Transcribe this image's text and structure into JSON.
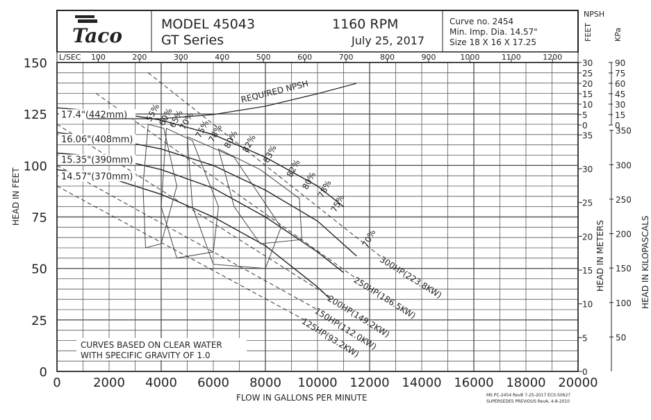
{
  "header": {
    "brand": "Taco",
    "model": "MODEL 45043",
    "series": "GT Series",
    "rpm": "1160 RPM",
    "date": "July 25, 2017",
    "curve_no": "Curve no. 2454",
    "min_imp": "Min. Imp. Dia. 14.57\"",
    "size": "Size 18 X 16 X 17.25"
  },
  "right_labels": {
    "npsh": "NPSH",
    "feet": "FEET",
    "kpa": "KPa",
    "head_meters": "HEAD IN METERS",
    "head_kpa": "HEAD IN KILOPASCALS"
  },
  "footer": {
    "note_line1": "CURVES BASED ON CLEAR WATER",
    "note_line2": "WITH SPECIFIC GRAVITY OF 1.0",
    "ms_line1": "MS PC-2454 RevB 7-25-2017 EC0-50627",
    "ms_line2": "SUPERSEDES PREVIOUS RevA, 4-8-2010"
  },
  "chart_data": {
    "type": "line",
    "xlabel": "FLOW IN GALLONS PER MINUTE",
    "ylabel": "HEAD IN FEET",
    "x2label": "L/SEC",
    "xlim": [
      0,
      20000
    ],
    "ylim": [
      0,
      150
    ],
    "x_ticks": [
      0,
      2000,
      4000,
      6000,
      8000,
      10000,
      12000,
      14000,
      16000,
      18000,
      20000
    ],
    "y_ticks": [
      0,
      25,
      50,
      75,
      100,
      125,
      150
    ],
    "lsec_ticks": [
      100,
      200,
      300,
      400,
      500,
      600,
      700,
      800,
      900,
      1000,
      1100,
      1200
    ],
    "meter_ticks": [
      0,
      5,
      10,
      15,
      20,
      25,
      30,
      35
    ],
    "kpa_ticks": [
      50,
      100,
      150,
      200,
      250,
      300,
      350
    ],
    "npsh_ft_ticks": [
      0,
      5,
      10,
      15,
      20,
      25,
      30
    ],
    "npsh_kpa_ticks": [
      0,
      15,
      30,
      45,
      60,
      75,
      90
    ],
    "impeller_curves": [
      {
        "name": "17.4\"(442mm)",
        "points": [
          [
            0,
            128
          ],
          [
            2000,
            126
          ],
          [
            4000,
            122
          ],
          [
            6000,
            115
          ],
          [
            8000,
            104
          ],
          [
            10000,
            90
          ],
          [
            11000,
            80
          ]
        ]
      },
      {
        "name": "16.06\"(408mm)",
        "points": [
          [
            0,
            116
          ],
          [
            2000,
            113
          ],
          [
            4000,
            108
          ],
          [
            6000,
            100
          ],
          [
            8000,
            88
          ],
          [
            10000,
            73
          ],
          [
            11500,
            56
          ]
        ]
      },
      {
        "name": "15.35\"(390mm)",
        "points": [
          [
            0,
            106
          ],
          [
            2000,
            104
          ],
          [
            4000,
            98
          ],
          [
            6000,
            89
          ],
          [
            8000,
            75
          ],
          [
            10000,
            58
          ],
          [
            11000,
            48
          ]
        ]
      },
      {
        "name": "14.57\"(370mm)",
        "points": [
          [
            0,
            98
          ],
          [
            2000,
            94
          ],
          [
            4000,
            86
          ],
          [
            6000,
            75
          ],
          [
            8000,
            61
          ],
          [
            10000,
            41
          ],
          [
            10500,
            35
          ]
        ]
      }
    ],
    "npsh_curve": {
      "name": "REQUIRED NPSH",
      "points_ft": [
        [
          1200,
          3
        ],
        [
          4000,
          3
        ],
        [
          6000,
          5
        ],
        [
          8000,
          9
        ],
        [
          10000,
          15
        ],
        [
          11500,
          20
        ]
      ]
    },
    "efficiency_labels": [
      "55%",
      "60%",
      "65%",
      "70%",
      "75%",
      "78%",
      "80%",
      "82%",
      "83%",
      "82%",
      "80%",
      "78%",
      "75%",
      "70%"
    ],
    "horsepower_lines": [
      {
        "name": "300HP(223.8KW)",
        "points": [
          [
            3500,
            145
          ],
          [
            12500,
            55
          ]
        ]
      },
      {
        "name": "250HP(186.5KW)",
        "points": [
          [
            1500,
            135
          ],
          [
            11500,
            45
          ]
        ]
      },
      {
        "name": "200HP(149.2KW)",
        "points": [
          [
            0,
            120
          ],
          [
            10500,
            36
          ]
        ]
      },
      {
        "name": "150HP(112.0KW)",
        "points": [
          [
            0,
            100
          ],
          [
            10000,
            30
          ]
        ]
      },
      {
        "name": "125HP(93.2KW)",
        "points": [
          [
            0,
            90
          ],
          [
            9500,
            25
          ]
        ]
      }
    ]
  }
}
